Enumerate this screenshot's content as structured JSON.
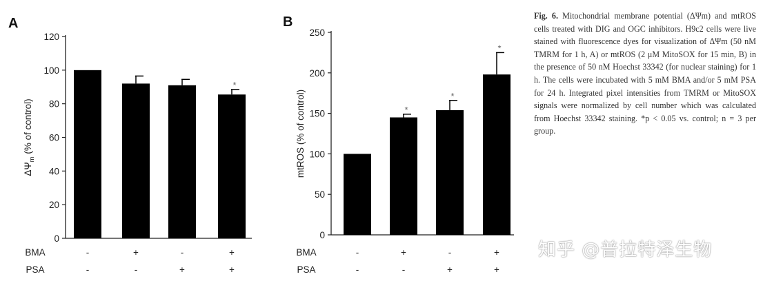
{
  "panels": [
    {
      "label": "A",
      "ylabel_main": "ΔΨ",
      "ylabel_sub": "m",
      "ylabel_rest": " (% of control)",
      "row_labels": [
        "BMA",
        "PSA"
      ],
      "treatment_rows": [
        [
          "-",
          "+",
          "-",
          "+"
        ],
        [
          "-",
          "-",
          "+",
          "+"
        ]
      ],
      "yticks": [
        "0",
        "20",
        "40",
        "60",
        "80",
        "100",
        "120"
      ],
      "sig_marker": "*"
    },
    {
      "label": "B",
      "ylabel_main": "mtROS",
      "ylabel_sub": "",
      "ylabel_rest": " (% of control)",
      "row_labels": [
        "BMA",
        "PSA"
      ],
      "treatment_rows": [
        [
          "-",
          "+",
          "-",
          "+"
        ],
        [
          "-",
          "-",
          "+",
          "+"
        ]
      ],
      "yticks": [
        "0",
        "50",
        "100",
        "150",
        "200",
        "250"
      ],
      "sig_marker": "*"
    }
  ],
  "chart_data": [
    {
      "type": "bar",
      "panel": "A",
      "categories": [
        "control",
        "BMA",
        "PSA",
        "BMA+PSA"
      ],
      "values": [
        100,
        92,
        91,
        85.5
      ],
      "errors": [
        0,
        4.5,
        3.5,
        3
      ],
      "significant": [
        false,
        false,
        false,
        true
      ],
      "ylabel": "ΔΨm (% of control)",
      "ylim": [
        0,
        120
      ],
      "color": "#000000"
    },
    {
      "type": "bar",
      "panel": "B",
      "categories": [
        "control",
        "BMA",
        "PSA",
        "BMA+PSA"
      ],
      "values": [
        100,
        145,
        154,
        198
      ],
      "errors": [
        0,
        4,
        12,
        27
      ],
      "significant": [
        false,
        true,
        true,
        true
      ],
      "ylabel": "mtROS (% of control)",
      "ylim": [
        0,
        250
      ],
      "color": "#000000"
    }
  ],
  "caption": {
    "label": "Fig. 6.",
    "text": "Mitochondrial membrane potential (ΔΨm) and mtROS cells treated with DIG and OGC inhibitors. H9c2 cells were live stained with fluorescence dyes for visualization of ΔΨm (50 nM TMRM for 1 h, A) or mtROS (2 μM MitoSOX for 15 min, B) in the presence of 50 nM Hoechst 33342 (for nuclear staining) for 1 h. The cells were incubated with 5 mM BMA and/or 5 mM PSA for 24 h. Integrated pixel intensities from TMRM or MitoSOX signals were normalized by cell number which was calculated from Hoechst 33342 staining. *p < 0.05 vs. control; n = 3 per group."
  },
  "watermark": "知乎 @普拉特泽生物"
}
